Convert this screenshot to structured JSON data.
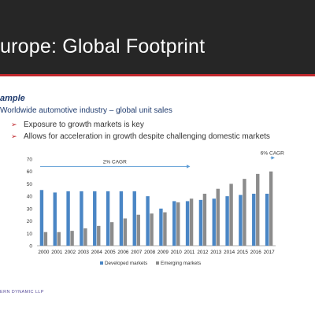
{
  "slide": {
    "title": "urope: Global Footprint",
    "example_label": "ample",
    "subtitle": "Worldwide automotive industry – global unit sales",
    "bullets": [
      "Exposure to growth markets is key",
      "Allows for acceleration in growth despite challenging domestic markets"
    ],
    "footer": "ERN DYNAMIC LLP",
    "colors": {
      "title_bar": "#262626",
      "accent": "#c0282d",
      "heading": "#1f3b6e"
    }
  },
  "chart_data": {
    "type": "bar",
    "categories": [
      "2000",
      "2001",
      "2002",
      "2003",
      "2004",
      "2005",
      "2006",
      "2007",
      "2008",
      "2009",
      "2010",
      "2011",
      "2012",
      "2013",
      "2014",
      "2015",
      "2016",
      "2017"
    ],
    "series": [
      {
        "name": "Developed markets",
        "color": "#4a86c5",
        "values": [
          45,
          43,
          44,
          44,
          44,
          44,
          44,
          44,
          40,
          30,
          36,
          36,
          37,
          38,
          40,
          41,
          42,
          42
        ]
      },
      {
        "name": "Emerging markets",
        "color": "#8c8c8c",
        "values": [
          11,
          11,
          12,
          14,
          16,
          19,
          22,
          25,
          26,
          27,
          35,
          38,
          42,
          46,
          50,
          54,
          58,
          60
        ]
      }
    ],
    "yticks": [
      0,
      10,
      20,
      30,
      40,
      50,
      60,
      70
    ],
    "ylim": [
      0,
      70
    ],
    "annotations": [
      {
        "label": "2% CAGR",
        "from": "2000",
        "to": "2011",
        "y": 64
      },
      {
        "label": "6% CAGR",
        "from": "2011",
        "to": "2017",
        "y": 71
      }
    ],
    "legend_position": "bottom",
    "grid": false
  }
}
